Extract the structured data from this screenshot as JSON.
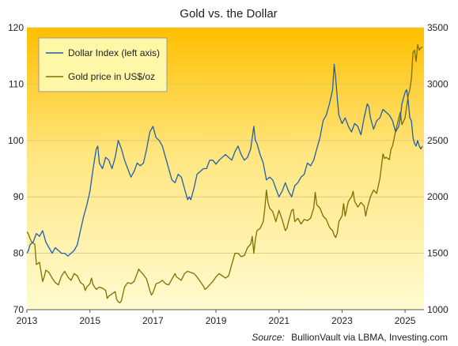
{
  "chart_data": {
    "type": "line",
    "title": "Gold vs. the Dollar",
    "source_label": "Source:",
    "source_text": "BullionVault via LBMA, Investing.com",
    "x_range": [
      2013,
      2025.6
    ],
    "x_ticks": [
      "2013",
      "2015",
      "2017",
      "2019",
      "2021",
      "2023",
      "2025"
    ],
    "y_left": {
      "range": [
        70,
        120
      ],
      "ticks": [
        "70",
        "80",
        "90",
        "100",
        "110",
        "120"
      ]
    },
    "y_right": {
      "range": [
        1000,
        3500
      ],
      "ticks": [
        "1000",
        "1500",
        "2000",
        "2500",
        "3000",
        "3500"
      ]
    },
    "grid": "horizontal",
    "legend": "top-left",
    "colors": {
      "dollar": "#1f5fae",
      "gold": "#7a7000",
      "bg_top": "#ffbf00",
      "bg_bottom": "#fffbd0"
    },
    "series": [
      {
        "name": "Dollar Index (left axis)",
        "axis": "left",
        "points": [
          [
            2013.0,
            80.0
          ],
          [
            2013.05,
            80.5
          ],
          [
            2013.1,
            81.5
          ],
          [
            2013.2,
            82.0
          ],
          [
            2013.3,
            83.5
          ],
          [
            2013.4,
            83.0
          ],
          [
            2013.5,
            84.0
          ],
          [
            2013.55,
            83.0
          ],
          [
            2013.6,
            82.0
          ],
          [
            2013.7,
            81.0
          ],
          [
            2013.8,
            80.0
          ],
          [
            2013.9,
            81.0
          ],
          [
            2014.0,
            80.5
          ],
          [
            2014.1,
            80.0
          ],
          [
            2014.2,
            80.0
          ],
          [
            2014.3,
            79.5
          ],
          [
            2014.4,
            80.0
          ],
          [
            2014.5,
            80.5
          ],
          [
            2014.6,
            81.5
          ],
          [
            2014.7,
            84.0
          ],
          [
            2014.8,
            86.5
          ],
          [
            2014.9,
            88.5
          ],
          [
            2015.0,
            91.0
          ],
          [
            2015.1,
            95.0
          ],
          [
            2015.2,
            98.5
          ],
          [
            2015.25,
            99.0
          ],
          [
            2015.3,
            96.0
          ],
          [
            2015.4,
            95.0
          ],
          [
            2015.5,
            97.0
          ],
          [
            2015.6,
            96.5
          ],
          [
            2015.7,
            95.0
          ],
          [
            2015.8,
            97.0
          ],
          [
            2015.9,
            100.0
          ],
          [
            2016.0,
            98.5
          ],
          [
            2016.1,
            96.5
          ],
          [
            2016.2,
            95.0
          ],
          [
            2016.3,
            93.5
          ],
          [
            2016.4,
            94.5
          ],
          [
            2016.5,
            96.0
          ],
          [
            2016.6,
            95.5
          ],
          [
            2016.7,
            96.0
          ],
          [
            2016.8,
            98.5
          ],
          [
            2016.9,
            101.5
          ],
          [
            2017.0,
            102.5
          ],
          [
            2017.1,
            100.5
          ],
          [
            2017.2,
            100.0
          ],
          [
            2017.3,
            99.0
          ],
          [
            2017.4,
            97.0
          ],
          [
            2017.5,
            95.0
          ],
          [
            2017.6,
            93.0
          ],
          [
            2017.7,
            92.5
          ],
          [
            2017.8,
            94.0
          ],
          [
            2017.9,
            93.5
          ],
          [
            2018.0,
            91.5
          ],
          [
            2018.1,
            89.5
          ],
          [
            2018.15,
            90.0
          ],
          [
            2018.2,
            89.5
          ],
          [
            2018.3,
            91.5
          ],
          [
            2018.4,
            94.0
          ],
          [
            2018.5,
            94.5
          ],
          [
            2018.6,
            95.0
          ],
          [
            2018.7,
            95.0
          ],
          [
            2018.8,
            96.5
          ],
          [
            2018.9,
            96.5
          ],
          [
            2019.0,
            95.8
          ],
          [
            2019.1,
            96.5
          ],
          [
            2019.2,
            97.0
          ],
          [
            2019.3,
            97.5
          ],
          [
            2019.4,
            97.0
          ],
          [
            2019.5,
            96.5
          ],
          [
            2019.6,
            98.0
          ],
          [
            2019.7,
            99.0
          ],
          [
            2019.8,
            97.5
          ],
          [
            2019.9,
            96.5
          ],
          [
            2020.0,
            97.0
          ],
          [
            2020.1,
            98.5
          ],
          [
            2020.2,
            102.5
          ],
          [
            2020.25,
            100.0
          ],
          [
            2020.3,
            99.5
          ],
          [
            2020.4,
            97.5
          ],
          [
            2020.5,
            96.0
          ],
          [
            2020.6,
            93.0
          ],
          [
            2020.7,
            93.5
          ],
          [
            2020.8,
            93.0
          ],
          [
            2020.9,
            91.5
          ],
          [
            2021.0,
            90.0
          ],
          [
            2021.1,
            91.0
          ],
          [
            2021.2,
            92.5
          ],
          [
            2021.3,
            91.0
          ],
          [
            2021.4,
            90.0
          ],
          [
            2021.5,
            92.0
          ],
          [
            2021.6,
            92.5
          ],
          [
            2021.7,
            93.5
          ],
          [
            2021.8,
            94.0
          ],
          [
            2021.9,
            96.0
          ],
          [
            2022.0,
            95.5
          ],
          [
            2022.1,
            96.5
          ],
          [
            2022.2,
            98.5
          ],
          [
            2022.3,
            100.5
          ],
          [
            2022.4,
            103.5
          ],
          [
            2022.5,
            104.5
          ],
          [
            2022.6,
            106.5
          ],
          [
            2022.7,
            109.0
          ],
          [
            2022.75,
            113.5
          ],
          [
            2022.8,
            111.0
          ],
          [
            2022.85,
            107.5
          ],
          [
            2022.9,
            104.5
          ],
          [
            2023.0,
            103.0
          ],
          [
            2023.1,
            104.0
          ],
          [
            2023.2,
            102.5
          ],
          [
            2023.3,
            101.5
          ],
          [
            2023.4,
            103.0
          ],
          [
            2023.5,
            102.5
          ],
          [
            2023.6,
            101.0
          ],
          [
            2023.7,
            104.0
          ],
          [
            2023.8,
            106.5
          ],
          [
            2023.85,
            106.0
          ],
          [
            2023.9,
            104.0
          ],
          [
            2024.0,
            102.0
          ],
          [
            2024.1,
            103.5
          ],
          [
            2024.2,
            104.0
          ],
          [
            2024.3,
            105.5
          ],
          [
            2024.4,
            105.0
          ],
          [
            2024.5,
            104.5
          ],
          [
            2024.6,
            103.5
          ],
          [
            2024.7,
            101.5
          ],
          [
            2024.8,
            102.5
          ],
          [
            2024.85,
            104.0
          ],
          [
            2024.9,
            106.5
          ],
          [
            2025.0,
            108.5
          ],
          [
            2025.05,
            109.0
          ],
          [
            2025.1,
            107.0
          ],
          [
            2025.15,
            104.0
          ],
          [
            2025.2,
            103.5
          ],
          [
            2025.25,
            100.5
          ],
          [
            2025.3,
            99.5
          ],
          [
            2025.35,
            99.0
          ],
          [
            2025.4,
            100.0
          ],
          [
            2025.45,
            99.0
          ],
          [
            2025.5,
            98.5
          ],
          [
            2025.55,
            99.0
          ]
        ]
      },
      {
        "name": "Gold price in US$/oz",
        "axis": "right",
        "points": [
          [
            2013.0,
            1690
          ],
          [
            2013.05,
            1670
          ],
          [
            2013.1,
            1630
          ],
          [
            2013.15,
            1600
          ],
          [
            2013.25,
            1580
          ],
          [
            2013.3,
            1400
          ],
          [
            2013.4,
            1420
          ],
          [
            2013.5,
            1250
          ],
          [
            2013.55,
            1290
          ],
          [
            2013.6,
            1350
          ],
          [
            2013.7,
            1330
          ],
          [
            2013.8,
            1280
          ],
          [
            2013.9,
            1240
          ],
          [
            2014.0,
            1220
          ],
          [
            2014.1,
            1300
          ],
          [
            2014.2,
            1340
          ],
          [
            2014.3,
            1290
          ],
          [
            2014.4,
            1260
          ],
          [
            2014.5,
            1320
          ],
          [
            2014.6,
            1300
          ],
          [
            2014.7,
            1240
          ],
          [
            2014.8,
            1220
          ],
          [
            2014.85,
            1170
          ],
          [
            2014.9,
            1200
          ],
          [
            2015.0,
            1230
          ],
          [
            2015.05,
            1280
          ],
          [
            2015.1,
            1220
          ],
          [
            2015.2,
            1180
          ],
          [
            2015.3,
            1200
          ],
          [
            2015.4,
            1190
          ],
          [
            2015.5,
            1170
          ],
          [
            2015.55,
            1100
          ],
          [
            2015.6,
            1120
          ],
          [
            2015.7,
            1140
          ],
          [
            2015.8,
            1160
          ],
          [
            2015.85,
            1090
          ],
          [
            2015.9,
            1070
          ],
          [
            2015.95,
            1060
          ],
          [
            2016.0,
            1080
          ],
          [
            2016.1,
            1200
          ],
          [
            2016.2,
            1240
          ],
          [
            2016.3,
            1230
          ],
          [
            2016.4,
            1250
          ],
          [
            2016.5,
            1320
          ],
          [
            2016.55,
            1360
          ],
          [
            2016.6,
            1340
          ],
          [
            2016.7,
            1310
          ],
          [
            2016.8,
            1270
          ],
          [
            2016.9,
            1170
          ],
          [
            2016.95,
            1130
          ],
          [
            2017.0,
            1150
          ],
          [
            2017.1,
            1230
          ],
          [
            2017.2,
            1240
          ],
          [
            2017.3,
            1260
          ],
          [
            2017.4,
            1230
          ],
          [
            2017.5,
            1220
          ],
          [
            2017.6,
            1270
          ],
          [
            2017.7,
            1320
          ],
          [
            2017.75,
            1290
          ],
          [
            2017.8,
            1280
          ],
          [
            2017.9,
            1260
          ],
          [
            2018.0,
            1320
          ],
          [
            2018.1,
            1340
          ],
          [
            2018.2,
            1330
          ],
          [
            2018.3,
            1320
          ],
          [
            2018.4,
            1290
          ],
          [
            2018.5,
            1250
          ],
          [
            2018.6,
            1210
          ],
          [
            2018.65,
            1180
          ],
          [
            2018.7,
            1190
          ],
          [
            2018.8,
            1220
          ],
          [
            2018.9,
            1250
          ],
          [
            2019.0,
            1290
          ],
          [
            2019.1,
            1320
          ],
          [
            2019.2,
            1300
          ],
          [
            2019.3,
            1280
          ],
          [
            2019.4,
            1300
          ],
          [
            2019.5,
            1400
          ],
          [
            2019.6,
            1500
          ],
          [
            2019.7,
            1500
          ],
          [
            2019.8,
            1470
          ],
          [
            2019.9,
            1480
          ],
          [
            2020.0,
            1550
          ],
          [
            2020.1,
            1580
          ],
          [
            2020.15,
            1650
          ],
          [
            2020.2,
            1500
          ],
          [
            2020.25,
            1620
          ],
          [
            2020.3,
            1700
          ],
          [
            2020.4,
            1720
          ],
          [
            2020.5,
            1780
          ],
          [
            2020.55,
            1900
          ],
          [
            2020.6,
            2060
          ],
          [
            2020.65,
            1950
          ],
          [
            2020.7,
            1900
          ],
          [
            2020.8,
            1870
          ],
          [
            2020.9,
            1780
          ],
          [
            2021.0,
            1880
          ],
          [
            2021.1,
            1800
          ],
          [
            2021.2,
            1700
          ],
          [
            2021.25,
            1720
          ],
          [
            2021.3,
            1780
          ],
          [
            2021.4,
            1880
          ],
          [
            2021.45,
            1890
          ],
          [
            2021.5,
            1780
          ],
          [
            2021.6,
            1810
          ],
          [
            2021.7,
            1760
          ],
          [
            2021.8,
            1800
          ],
          [
            2021.9,
            1790
          ],
          [
            2022.0,
            1810
          ],
          [
            2022.1,
            1900
          ],
          [
            2022.15,
            2040
          ],
          [
            2022.2,
            1930
          ],
          [
            2022.3,
            1900
          ],
          [
            2022.4,
            1830
          ],
          [
            2022.5,
            1800
          ],
          [
            2022.6,
            1730
          ],
          [
            2022.7,
            1700
          ],
          [
            2022.75,
            1660
          ],
          [
            2022.8,
            1640
          ],
          [
            2022.85,
            1680
          ],
          [
            2022.9,
            1780
          ],
          [
            2023.0,
            1830
          ],
          [
            2023.05,
            1940
          ],
          [
            2023.1,
            1830
          ],
          [
            2023.2,
            1960
          ],
          [
            2023.3,
            2000
          ],
          [
            2023.35,
            2050
          ],
          [
            2023.4,
            1960
          ],
          [
            2023.5,
            1910
          ],
          [
            2023.6,
            1950
          ],
          [
            2023.7,
            1920
          ],
          [
            2023.75,
            1830
          ],
          [
            2023.8,
            1900
          ],
          [
            2023.9,
            2000
          ],
          [
            2024.0,
            2060
          ],
          [
            2024.1,
            2030
          ],
          [
            2024.2,
            2160
          ],
          [
            2024.3,
            2380
          ],
          [
            2024.35,
            2340
          ],
          [
            2024.4,
            2350
          ],
          [
            2024.5,
            2330
          ],
          [
            2024.55,
            2420
          ],
          [
            2024.6,
            2450
          ],
          [
            2024.7,
            2580
          ],
          [
            2024.8,
            2700
          ],
          [
            2024.85,
            2750
          ],
          [
            2024.9,
            2640
          ],
          [
            2025.0,
            2700
          ],
          [
            2025.1,
            2900
          ],
          [
            2025.15,
            2950
          ],
          [
            2025.2,
            3050
          ],
          [
            2025.25,
            3280
          ],
          [
            2025.3,
            3300
          ],
          [
            2025.35,
            3200
          ],
          [
            2025.4,
            3350
          ],
          [
            2025.45,
            3300
          ],
          [
            2025.5,
            3320
          ],
          [
            2025.55,
            3330
          ]
        ]
      }
    ]
  }
}
